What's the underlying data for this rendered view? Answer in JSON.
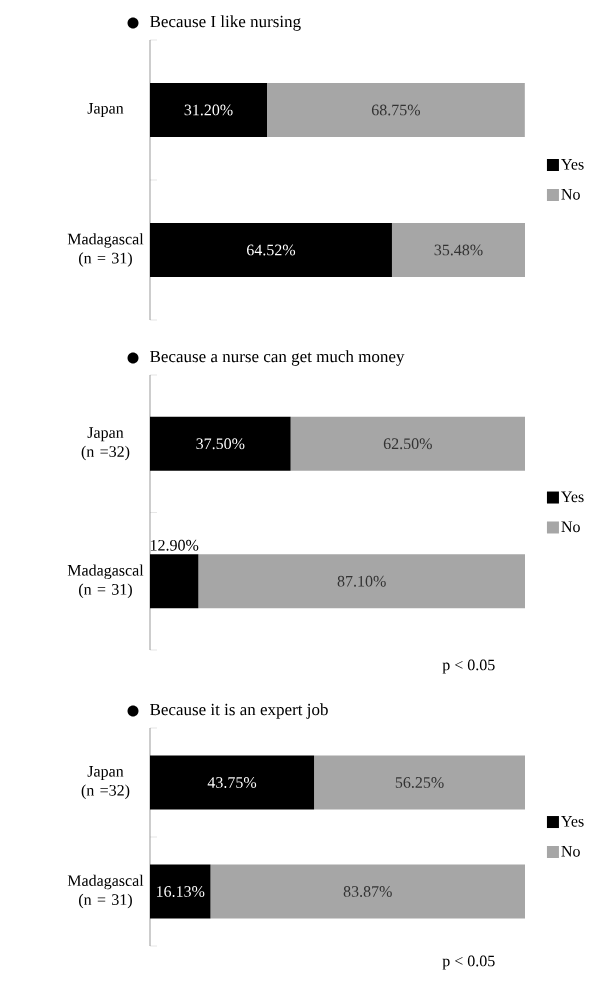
{
  "chart_data": [
    {
      "type": "bar",
      "orientation": "horizontal",
      "stacked": true,
      "legend": "right",
      "title": "Because I like nursing",
      "categories": [
        "Japan",
        "Madagascal (n = 31)"
      ],
      "series": [
        {
          "name": "Yes",
          "color": "#000000",
          "values": [
            31.2,
            64.52
          ],
          "value_labels": [
            "31.20%",
            "64.52%"
          ]
        },
        {
          "name": "No",
          "color": "#a6a6a6",
          "values": [
            68.75,
            35.48
          ],
          "value_labels": [
            "68.75%",
            "35.48%"
          ]
        }
      ]
    },
    {
      "type": "bar",
      "orientation": "horizontal",
      "stacked": true,
      "legend": "right",
      "title": "Because a nurse can get much money",
      "categories": [
        "Japan (n =32)",
        "Madagascal (n = 31)"
      ],
      "annotations": [
        "p < 0.05"
      ],
      "series": [
        {
          "name": "Yes",
          "color": "#000000",
          "values": [
            37.5,
            12.9
          ],
          "value_labels": [
            "37.50%",
            "12.90%"
          ]
        },
        {
          "name": "No",
          "color": "#a6a6a6",
          "values": [
            62.5,
            87.1
          ],
          "value_labels": [
            "62.50%",
            "87.10%"
          ]
        }
      ]
    },
    {
      "type": "bar",
      "orientation": "horizontal",
      "stacked": true,
      "legend": "right",
      "title": "Because it is an expert job",
      "categories": [
        "Japan (n =32)",
        "Madagascal (n = 31)"
      ],
      "annotations": [
        "p < 0.05"
      ],
      "series": [
        {
          "name": "Yes",
          "color": "#000000",
          "values": [
            43.75,
            16.13
          ],
          "value_labels": [
            "43.75%",
            "16.13%"
          ]
        },
        {
          "name": "No",
          "color": "#a6a6a6",
          "values": [
            56.25,
            83.87
          ],
          "value_labels": [
            "56.25%",
            "83.87%"
          ]
        }
      ]
    }
  ]
}
